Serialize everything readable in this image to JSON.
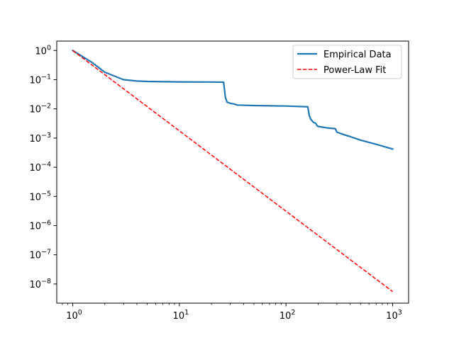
{
  "chart_data": {
    "type": "line",
    "title": "",
    "xlabel": "",
    "ylabel": "",
    "xscale": "log",
    "yscale": "log",
    "xlim": [
      0.708,
      1412
    ],
    "ylim": [
      2.2e-09,
      2.1
    ],
    "grid": false,
    "legend": "top-right",
    "x_ticks": [
      {
        "value": 1,
        "base": "10",
        "exp": "0"
      },
      {
        "value": 10,
        "base": "10",
        "exp": "1"
      },
      {
        "value": 100,
        "base": "10",
        "exp": "2"
      },
      {
        "value": 1000,
        "base": "10",
        "exp": "3"
      }
    ],
    "y_ticks": [
      {
        "value": 1,
        "base": "10",
        "exp": "0"
      },
      {
        "value": 0.1,
        "base": "10",
        "exp": "−1"
      },
      {
        "value": 0.01,
        "base": "10",
        "exp": "−2"
      },
      {
        "value": 0.001,
        "base": "10",
        "exp": "−3"
      },
      {
        "value": 0.0001,
        "base": "10",
        "exp": "−4"
      },
      {
        "value": 1e-05,
        "base": "10",
        "exp": "−5"
      },
      {
        "value": 1e-06,
        "base": "10",
        "exp": "−6"
      },
      {
        "value": 1e-07,
        "base": "10",
        "exp": "−7"
      },
      {
        "value": 1e-08,
        "base": "10",
        "exp": "−8"
      }
    ],
    "series": [
      {
        "name": "Empirical Data",
        "color": "#1f77b4",
        "style": "solid",
        "x": [
          1,
          1.5,
          2,
          3,
          4,
          5,
          10,
          20,
          26,
          26.5,
          27,
          28,
          30,
          33,
          35,
          50,
          100,
          160,
          163,
          165,
          170,
          180,
          190,
          195,
          200,
          250,
          290,
          300,
          350,
          400,
          500,
          700,
          1000
        ],
        "y": [
          1,
          0.4,
          0.18,
          0.1,
          0.09,
          0.087,
          0.084,
          0.083,
          0.082,
          0.045,
          0.025,
          0.017,
          0.0155,
          0.0145,
          0.0135,
          0.013,
          0.0125,
          0.0118,
          0.008,
          0.006,
          0.0045,
          0.0035,
          0.0032,
          0.0027,
          0.0025,
          0.0022,
          0.0021,
          0.0016,
          0.0013,
          0.00112,
          0.00085,
          0.00061,
          0.00042
        ]
      },
      {
        "name": "Power-Law Fit",
        "color": "#ff0000",
        "style": "dashed",
        "x": [
          1,
          1000
        ],
        "y": [
          1,
          5.5e-09
        ]
      }
    ]
  }
}
